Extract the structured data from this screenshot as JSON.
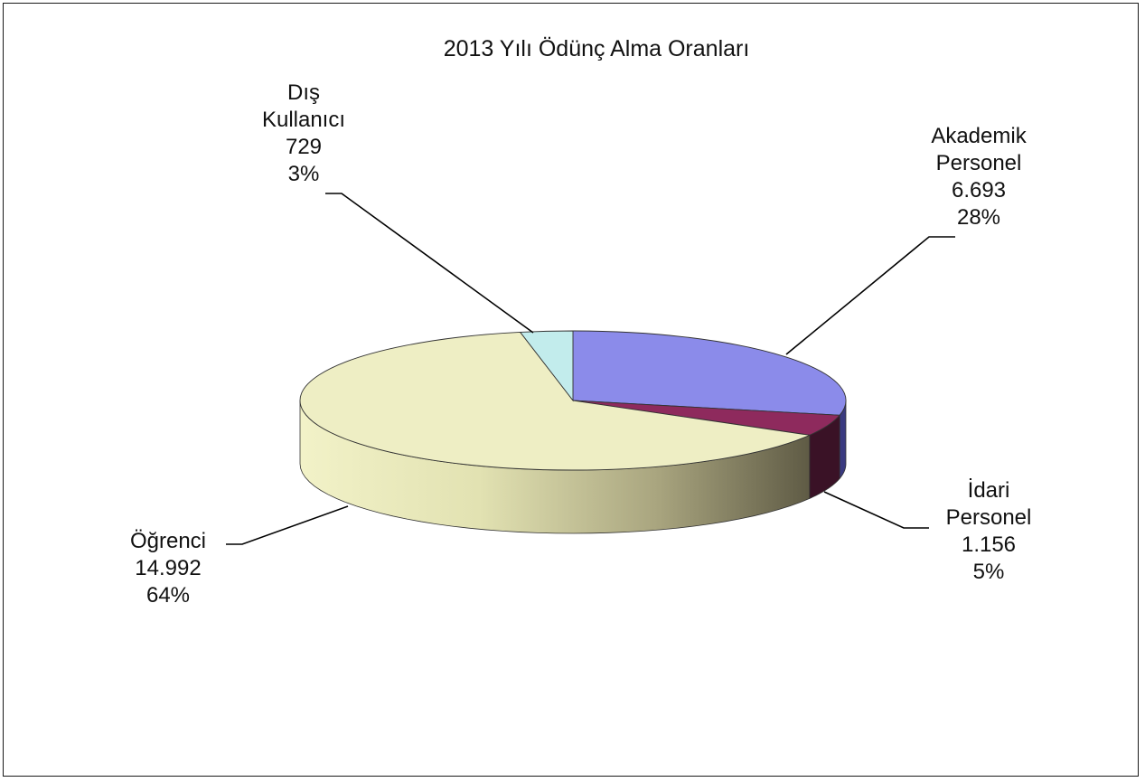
{
  "chart_data": {
    "type": "pie",
    "style": "3d-exploded-none",
    "title": "2013 Yılı Ödünç Alma Oranları",
    "start_angle_deg": 90,
    "direction": "clockwise",
    "slices": [
      {
        "name_lines": [
          "Akademik",
          "Personel"
        ],
        "value_text": "6.693",
        "value": 6693,
        "percent_text": "28%",
        "color": "#8b8bea",
        "side_color": "#3a3a80"
      },
      {
        "name_lines": [
          "İdari",
          "Personel"
        ],
        "value_text": "1.156",
        "value": 1156,
        "percent_text": "5%",
        "color": "#8e2a5d",
        "side_color": "#3a1226"
      },
      {
        "name_lines": [
          "Öğrenci"
        ],
        "value_text": "14.992",
        "value": 14992,
        "percent_text": "64%",
        "color": "#eeeec4",
        "side_color": "#cfcf9c"
      },
      {
        "name_lines": [
          "Dış",
          "Kullanıcı"
        ],
        "value_text": "729",
        "value": 729,
        "percent_text": "3%",
        "color": "#c2ecec",
        "side_color": "#8fc1c1"
      }
    ]
  }
}
